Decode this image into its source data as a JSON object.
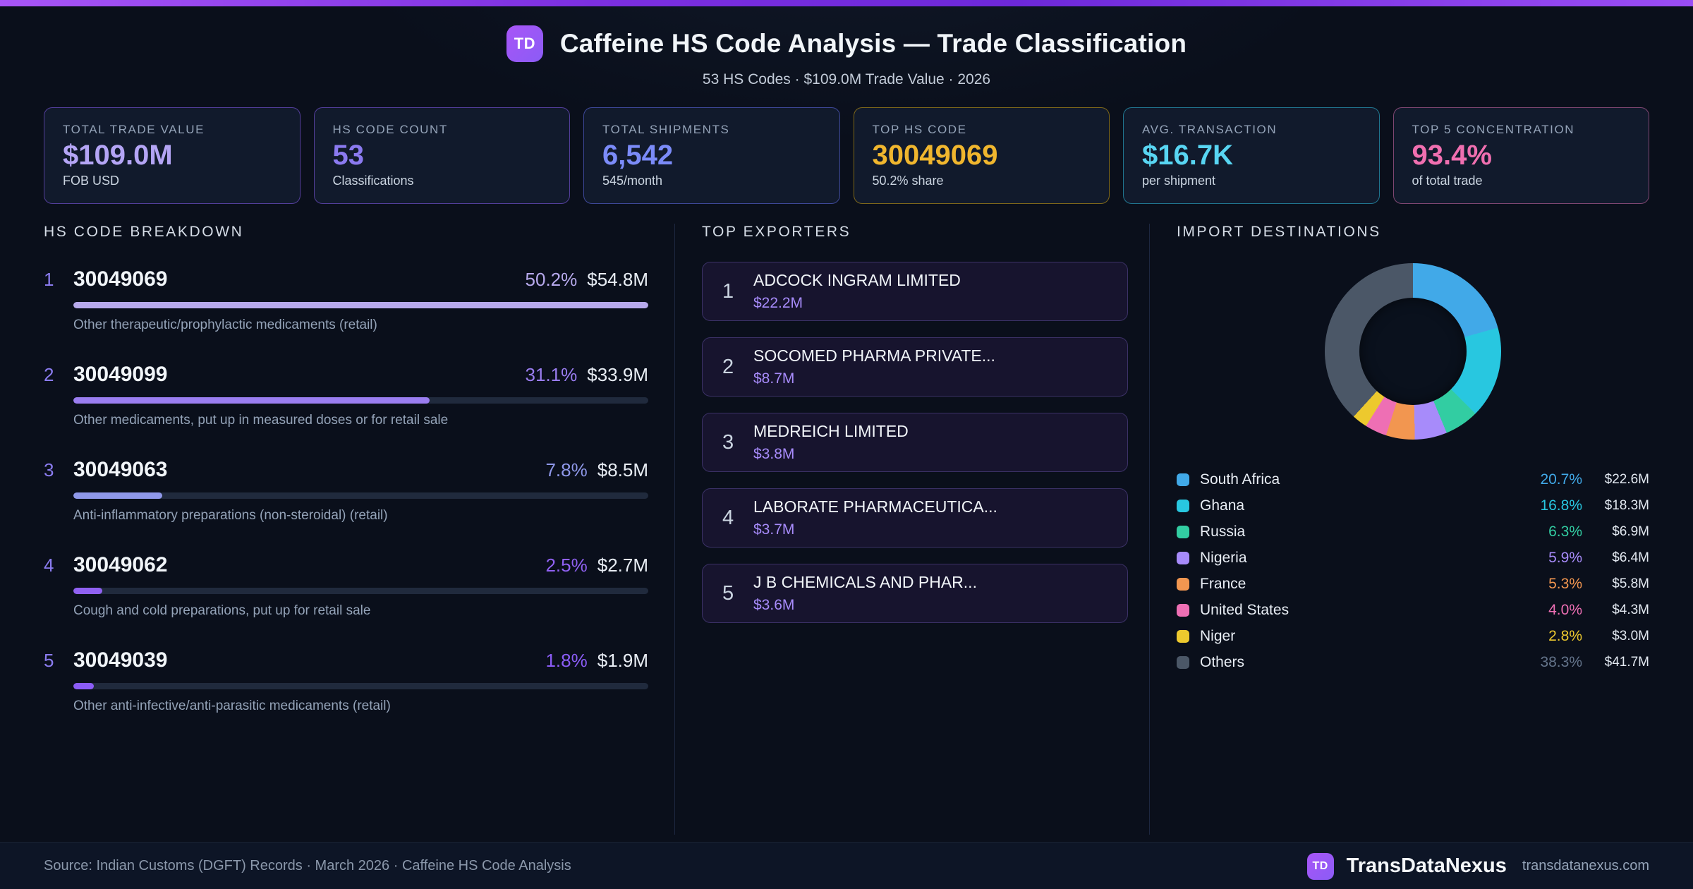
{
  "header": {
    "badge": "TD",
    "title": "Caffeine HS Code Analysis — Trade Classification",
    "subtitle": "53 HS Codes · $109.0M Trade Value · 2026"
  },
  "stats": [
    {
      "label": "TOTAL TRADE VALUE",
      "value": "$109.0M",
      "sub": "FOB USD",
      "value_color": "#b4a5f5",
      "border_color": "rgba(139,92,246,0.55)"
    },
    {
      "label": "HS CODE COUNT",
      "value": "53",
      "sub": "Classifications",
      "value_color": "#8b7af0",
      "border_color": "rgba(139,92,246,0.55)"
    },
    {
      "label": "TOTAL SHIPMENTS",
      "value": "6,542",
      "sub": "545/month",
      "value_color": "#7b8bf8",
      "border_color": "rgba(99,110,241,0.55)"
    },
    {
      "label": "TOP HS CODE",
      "value": "30049069",
      "sub": "50.2% share",
      "value_color": "#f0b62e",
      "border_color": "rgba(234,179,8,0.5)"
    },
    {
      "label": "AVG. TRANSACTION",
      "value": "$16.7K",
      "sub": "per shipment",
      "value_color": "#58d5f2",
      "border_color": "rgba(45,192,224,0.55)"
    },
    {
      "label": "TOP 5 CONCENTRATION",
      "value": "93.4%",
      "sub": "of total trade",
      "value_color": "#f06fb0",
      "border_color": "rgba(236,114,182,0.5)"
    }
  ],
  "breakdown": {
    "heading": "HS CODE BREAKDOWN",
    "items": [
      {
        "rank": "1",
        "code": "30049069",
        "pct": "50.2%",
        "value": "$54.8M",
        "desc": "Other therapeutic/prophylactic medicaments (retail)",
        "bar_pct": 100,
        "color": "#b7a9ec"
      },
      {
        "rank": "2",
        "code": "30049099",
        "pct": "31.1%",
        "value": "$33.9M",
        "desc": "Other medicaments, put up in measured doses or for retail sale",
        "bar_pct": 62,
        "color": "#9a7df0"
      },
      {
        "rank": "3",
        "code": "30049063",
        "pct": "7.8%",
        "value": "$8.5M",
        "desc": "Anti-inflammatory preparations (non-steroidal) (retail)",
        "bar_pct": 15.5,
        "color": "#8f98ea"
      },
      {
        "rank": "4",
        "code": "30049062",
        "pct": "2.5%",
        "value": "$2.7M",
        "desc": "Cough and cold preparations, put up for retail sale",
        "bar_pct": 5,
        "color": "#9061f2"
      },
      {
        "rank": "5",
        "code": "30049039",
        "pct": "1.8%",
        "value": "$1.9M",
        "desc": "Other anti-infective/anti-parasitic medicaments (retail)",
        "bar_pct": 3.6,
        "color": "#8b5cf6"
      }
    ]
  },
  "exporters": {
    "heading": "TOP EXPORTERS",
    "items": [
      {
        "rank": "1",
        "name": "ADCOCK INGRAM LIMITED",
        "value": "$22.2M"
      },
      {
        "rank": "2",
        "name": "SOCOMED PHARMA PRIVATE...",
        "value": "$8.7M"
      },
      {
        "rank": "3",
        "name": "MEDREICH LIMITED",
        "value": "$3.8M"
      },
      {
        "rank": "4",
        "name": "LABORATE PHARMACEUTICA...",
        "value": "$3.7M"
      },
      {
        "rank": "5",
        "name": "J B CHEMICALS AND PHAR...",
        "value": "$3.6M"
      }
    ]
  },
  "destinations": {
    "heading": "IMPORT DESTINATIONS"
  },
  "chart_data": {
    "type": "pie",
    "donut": true,
    "title": "Import Destinations",
    "categories": [
      "South Africa",
      "Ghana",
      "Russia",
      "Nigeria",
      "France",
      "United States",
      "Niger",
      "Others"
    ],
    "values": [
      20.7,
      16.8,
      6.3,
      5.9,
      5.3,
      4.0,
      2.8,
      38.3
    ],
    "amounts": [
      "$22.6M",
      "$18.3M",
      "$6.9M",
      "$6.4M",
      "$5.8M",
      "$4.3M",
      "$3.0M",
      "$41.7M"
    ],
    "colors": [
      "#41a9e8",
      "#28c7e0",
      "#32cda2",
      "#a78bfa",
      "#f29650",
      "#ee6fb4",
      "#edc92e",
      "#4b5767"
    ],
    "others_pct_color": "#64748b",
    "legend_position": "bottom",
    "start_angle_deg": 0,
    "direction": "clockwise"
  },
  "footer": {
    "source": "Source: Indian Customs (DGFT) Records · March 2026 · Caffeine HS Code Analysis",
    "badge": "TD",
    "brand": "TransDataNexus",
    "site": "transdatanexus.com"
  }
}
